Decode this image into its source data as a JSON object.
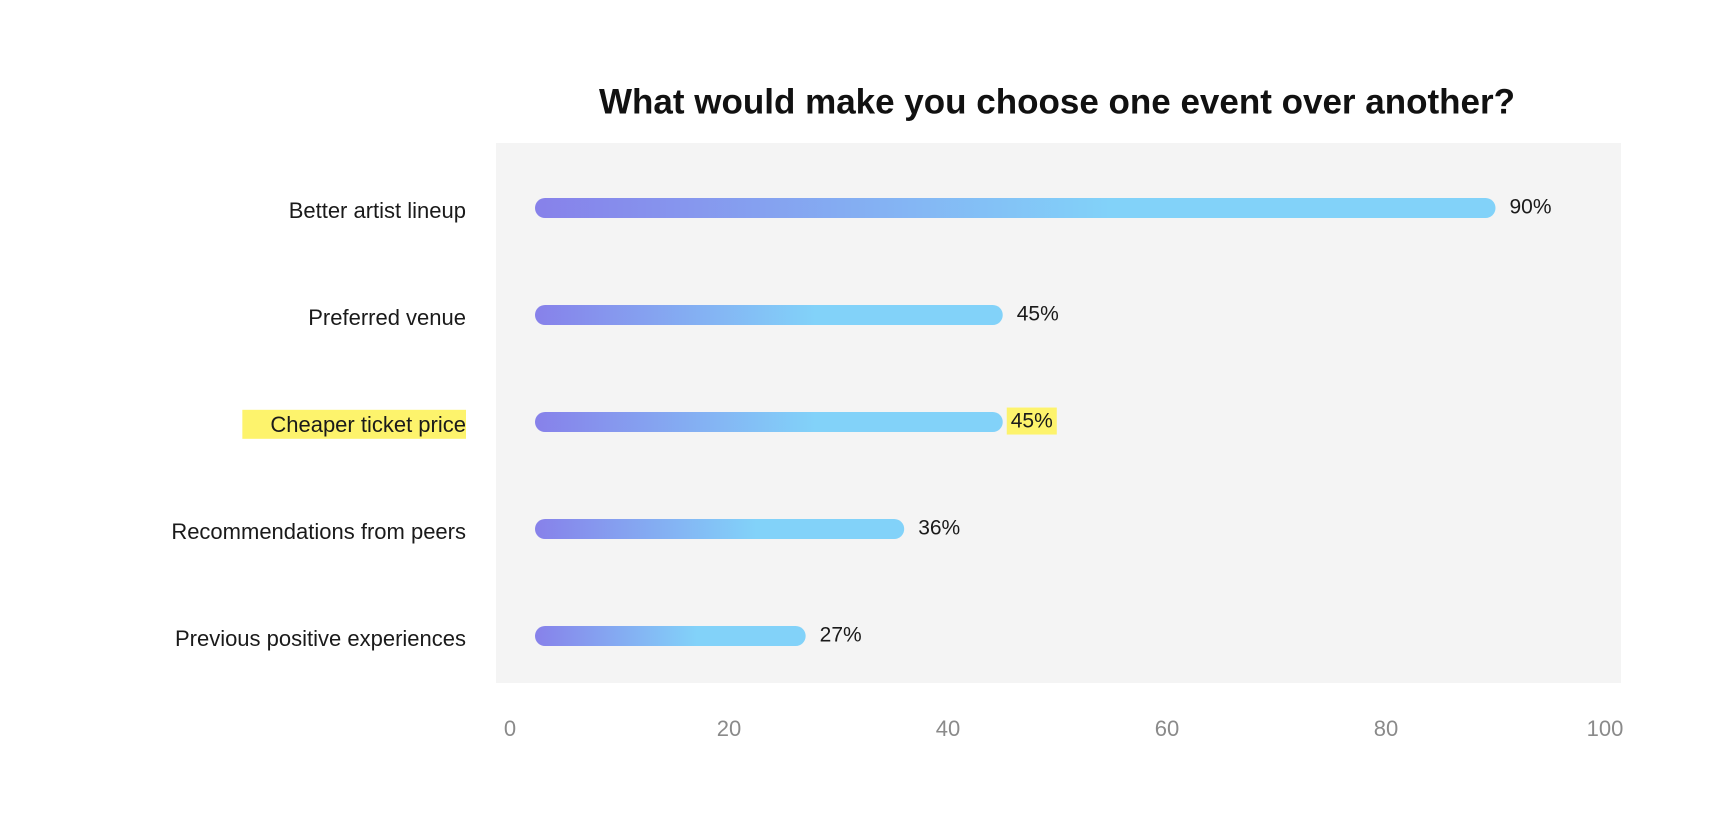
{
  "chart_data": {
    "type": "bar",
    "orientation": "horizontal",
    "title": "What would make you choose one event over another?",
    "categories": [
      "Better artist lineup",
      "Preferred venue",
      "Cheaper ticket price",
      "Recommendations from peers",
      "Previous positive experiences"
    ],
    "values": [
      90,
      45,
      45,
      36,
      27
    ],
    "value_labels": [
      "90%",
      "45%",
      "45%",
      "36%",
      "27%"
    ],
    "gradient": [
      "#8781ea",
      "#82d2f9"
    ],
    "plot_background": "#f4f4f4",
    "highlight": {
      "index": 2,
      "color": "#fdf36c"
    },
    "xlim": [
      0,
      100
    ],
    "xticks": [
      0,
      20,
      40,
      60,
      80,
      100
    ]
  }
}
